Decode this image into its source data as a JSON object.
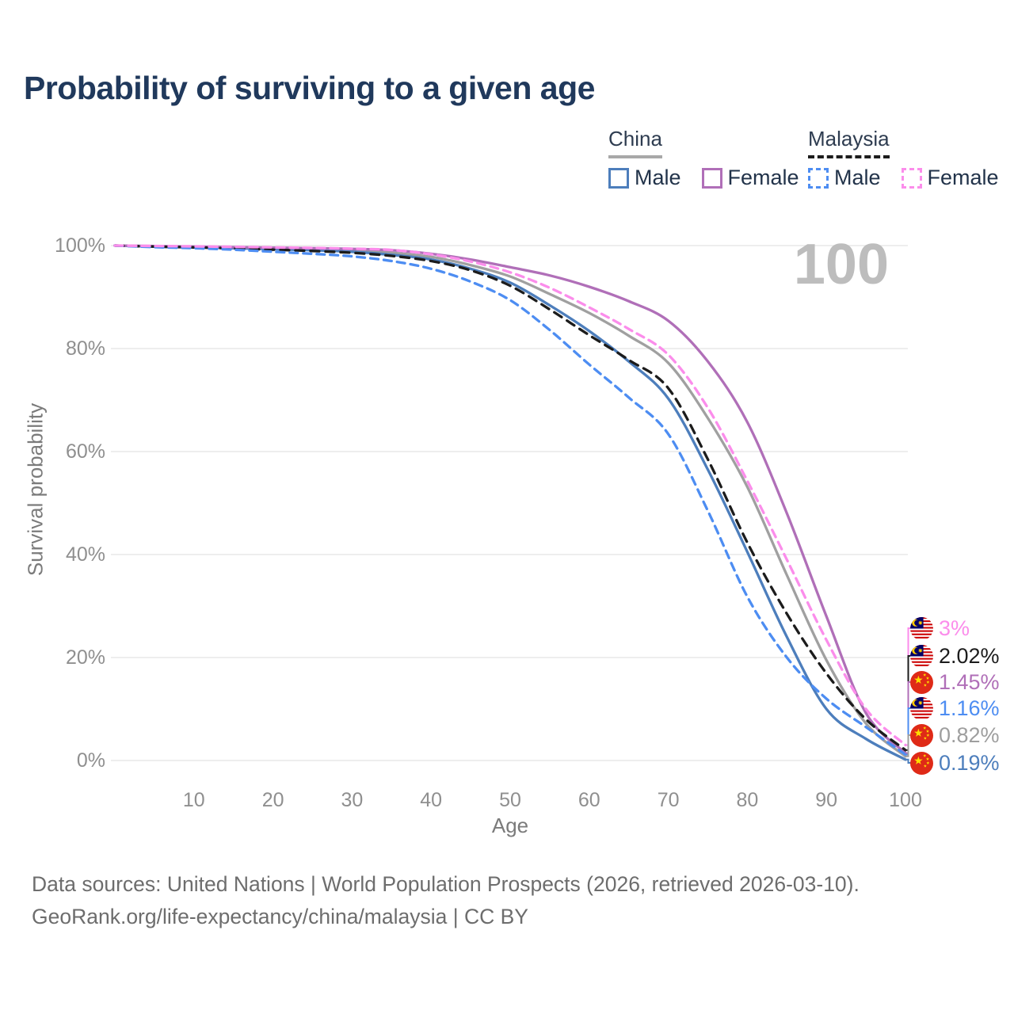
{
  "title": "Probability of surviving to a given age",
  "age_counter": "100",
  "legend": {
    "groups": [
      {
        "country": "China",
        "dashed": false,
        "underline_color": "#a8a8a8",
        "items": [
          {
            "label": "Male",
            "color": "#4d7ebc",
            "dashed": false
          },
          {
            "label": "Female",
            "color": "#b06fb8",
            "dashed": false
          }
        ]
      },
      {
        "country": "Malaysia",
        "dashed": true,
        "underline_color": "#1c1c1c",
        "items": [
          {
            "label": "Male",
            "color": "#4d8df2",
            "dashed": true
          },
          {
            "label": "Female",
            "color": "#fb8deb",
            "dashed": true
          }
        ]
      }
    ]
  },
  "chart_data": {
    "type": "line",
    "title": "Probability of surviving to a given age",
    "xlabel": "Age",
    "ylabel": "Survival probability",
    "xlim": [
      0,
      100
    ],
    "ylim": [
      0,
      100
    ],
    "grid": "horizontal",
    "legend_position": "top-right",
    "x_ticks": [
      10,
      20,
      30,
      40,
      50,
      60,
      70,
      80,
      90,
      100
    ],
    "y_ticks": [
      0,
      20,
      40,
      60,
      80,
      100
    ],
    "y_tick_labels": [
      "0%",
      "20%",
      "40%",
      "60%",
      "80%",
      "100%"
    ],
    "x": [
      0,
      5,
      10,
      15,
      20,
      25,
      30,
      35,
      40,
      45,
      50,
      55,
      60,
      65,
      70,
      75,
      80,
      85,
      90,
      95,
      100
    ],
    "series": [
      {
        "id": "china-both",
        "name": "China (both sexes)",
        "country": "China",
        "color": "#a0a0a0",
        "dash": null,
        "end_label": "0.82%",
        "flag": "china",
        "values": [
          100,
          99.85,
          99.75,
          99.6,
          99.45,
          99.3,
          99.1,
          98.6,
          97.8,
          96.2,
          94.0,
          90.6,
          86.9,
          82.5,
          77.2,
          66.5,
          53.1,
          36.0,
          19.5,
          7.2,
          0.82
        ]
      },
      {
        "id": "china-male",
        "name": "China Male",
        "country": "China",
        "color": "#4d7ebc",
        "dash": null,
        "end_label": "0.19%",
        "flag": "china",
        "values": [
          100,
          99.8,
          99.7,
          99.5,
          99.3,
          99.1,
          98.8,
          98.2,
          97.3,
          95.5,
          92.8,
          88.4,
          83.4,
          77.5,
          70.3,
          56.5,
          40.5,
          24.0,
          10.0,
          4.2,
          0.19
        ]
      },
      {
        "id": "china-female",
        "name": "China Female",
        "country": "China",
        "color": "#b06fb8",
        "dash": null,
        "end_label": "1.45%",
        "flag": "china",
        "values": [
          100,
          99.9,
          99.8,
          99.7,
          99.6,
          99.5,
          99.35,
          99.1,
          98.4,
          97.3,
          95.8,
          94.2,
          92.0,
          89.2,
          85.4,
          77.5,
          65.7,
          48.0,
          28.0,
          9.2,
          1.45
        ]
      },
      {
        "id": "malaysia-both",
        "name": "Malaysia (both sexes)",
        "country": "Malaysia",
        "color": "#1c1c1c",
        "dash": "11 8",
        "end_label": "2.02%",
        "flag": "malaysia",
        "values": [
          100,
          99.8,
          99.65,
          99.45,
          99.2,
          98.95,
          98.6,
          98.0,
          97.0,
          95.2,
          92.2,
          87.6,
          82.6,
          77.8,
          72.3,
          58.5,
          42.3,
          28.5,
          16.9,
          8.0,
          2.02
        ]
      },
      {
        "id": "malaysia-male",
        "name": "Malaysia Male",
        "country": "Malaysia",
        "color": "#4d8df2",
        "dash": "10 7",
        "end_label": "1.16%",
        "flag": "malaysia",
        "values": [
          100,
          99.7,
          99.5,
          99.2,
          98.8,
          98.4,
          97.9,
          97.0,
          95.5,
          93.0,
          89.4,
          83.6,
          76.9,
          70.5,
          63.4,
          48.5,
          31.8,
          20.0,
          12.0,
          6.5,
          1.16
        ]
      },
      {
        "id": "malaysia-female",
        "name": "Malaysia Female",
        "country": "Malaysia",
        "color": "#fb8deb",
        "dash": "10 7",
        "end_label": "3%",
        "flag": "malaysia",
        "values": [
          100,
          99.92,
          99.85,
          99.75,
          99.65,
          99.55,
          99.4,
          99.15,
          98.3,
          96.9,
          94.8,
          91.8,
          88.0,
          83.8,
          78.8,
          68.5,
          54.3,
          39.0,
          23.4,
          10.0,
          3.0
        ]
      }
    ]
  },
  "end_labels": [
    {
      "text": "3%",
      "flag": "malaysia",
      "color": "#fb8deb",
      "series": "malaysia-female",
      "value": 3.0
    },
    {
      "text": "2.02%",
      "flag": "malaysia",
      "color": "#1c1c1c",
      "series": "malaysia-both",
      "value": 2.02
    },
    {
      "text": "1.45%",
      "flag": "china",
      "color": "#b06fb8",
      "series": "china-female",
      "value": 1.45
    },
    {
      "text": "1.16%",
      "flag": "malaysia",
      "color": "#4d8df2",
      "series": "malaysia-male",
      "value": 1.16
    },
    {
      "text": "0.82%",
      "flag": "china",
      "color": "#9e9e9e",
      "series": "china-both",
      "value": 0.82
    },
    {
      "text": "0.19%",
      "flag": "china",
      "color": "#4d7ebc",
      "series": "china-male",
      "value": 0.19
    }
  ],
  "footer": {
    "line1": "Data sources: United Nations | World Population Prospects (2026, retrieved 2026-03-10).",
    "line2": "GeoRank.org/life-expectancy/china/malaysia | CC BY"
  }
}
